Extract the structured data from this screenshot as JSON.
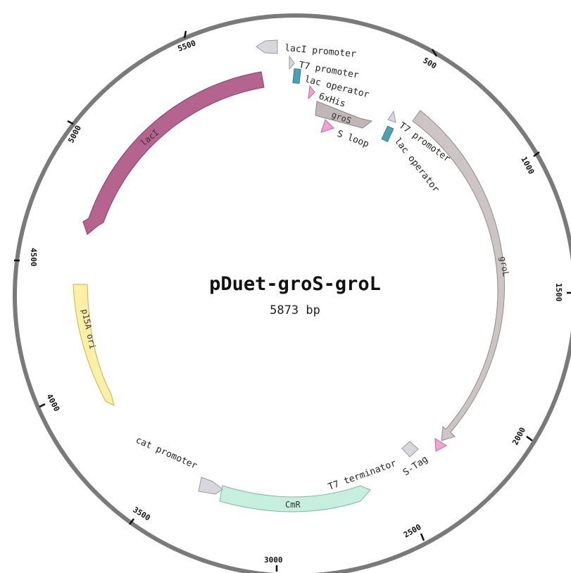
{
  "plasmid": {
    "name": "pDuet-groS-groL",
    "size_label": "5873 bp",
    "total_bp": 5873
  },
  "ticks": [
    {
      "label": "500",
      "bp": 500
    },
    {
      "label": "1000",
      "bp": 1000
    },
    {
      "label": "1500",
      "bp": 1500
    },
    {
      "label": "2000",
      "bp": 2000
    },
    {
      "label": "2500",
      "bp": 2500
    },
    {
      "label": "3000",
      "bp": 3000
    },
    {
      "label": "3500",
      "bp": 3500
    },
    {
      "label": "4000",
      "bp": 4000
    },
    {
      "label": "4500",
      "bp": 4500
    },
    {
      "label": "5000",
      "bp": 5000
    },
    {
      "label": "5500",
      "bp": 5500
    }
  ],
  "features": [
    {
      "id": "lacI",
      "label": "lacI",
      "color": "#b5638f",
      "stroke": "#8a3d66"
    },
    {
      "id": "lacI-promoter",
      "label": "lacI promoter",
      "color": "#d7d7dd",
      "stroke": "#9a9aa4"
    },
    {
      "id": "t7-promoter-1",
      "label": "T7 promoter",
      "color": "#d7d7dd",
      "stroke": "#9a9aa4"
    },
    {
      "id": "lac-operator-1",
      "label": "lac operator",
      "color": "#4aa3b5",
      "stroke": "#2a7a8a"
    },
    {
      "id": "6xhis",
      "label": "6xHis",
      "color": "#f2a3cf",
      "stroke": "#c26a9e"
    },
    {
      "id": "gros",
      "label": "groS",
      "color": "#c2b6b8",
      "stroke": "#8e8284"
    },
    {
      "id": "s-loop",
      "label": "S loop",
      "color": "#f2a3cf",
      "stroke": "#c26a9e"
    },
    {
      "id": "t7-promoter-2",
      "label": "T7 promoter",
      "color": "#d7d7dd",
      "stroke": "#9a9aa4"
    },
    {
      "id": "lac-operator-2",
      "label": "lac operator",
      "color": "#4aa3b5",
      "stroke": "#2a7a8a"
    },
    {
      "id": "grol",
      "label": "groL",
      "color": "#cdc4c5",
      "stroke": "#938a8b"
    },
    {
      "id": "s-tag",
      "label": "S-Tag",
      "color": "#f2a3cf",
      "stroke": "#c26a9e"
    },
    {
      "id": "t7-terminator",
      "label": "T7 terminator",
      "color": "#d7d7dd",
      "stroke": "#9a9aa4"
    },
    {
      "id": "cmr",
      "label": "CmR",
      "color": "#c6efe0",
      "stroke": "#7fb8a3"
    },
    {
      "id": "cat-promoter",
      "label": "cat promoter",
      "color": "#d7d7dd",
      "stroke": "#9a9aa4"
    },
    {
      "id": "p15a-ori",
      "label": "p15A ori",
      "color": "#fdf0a6",
      "stroke": "#c8b44a"
    }
  ]
}
